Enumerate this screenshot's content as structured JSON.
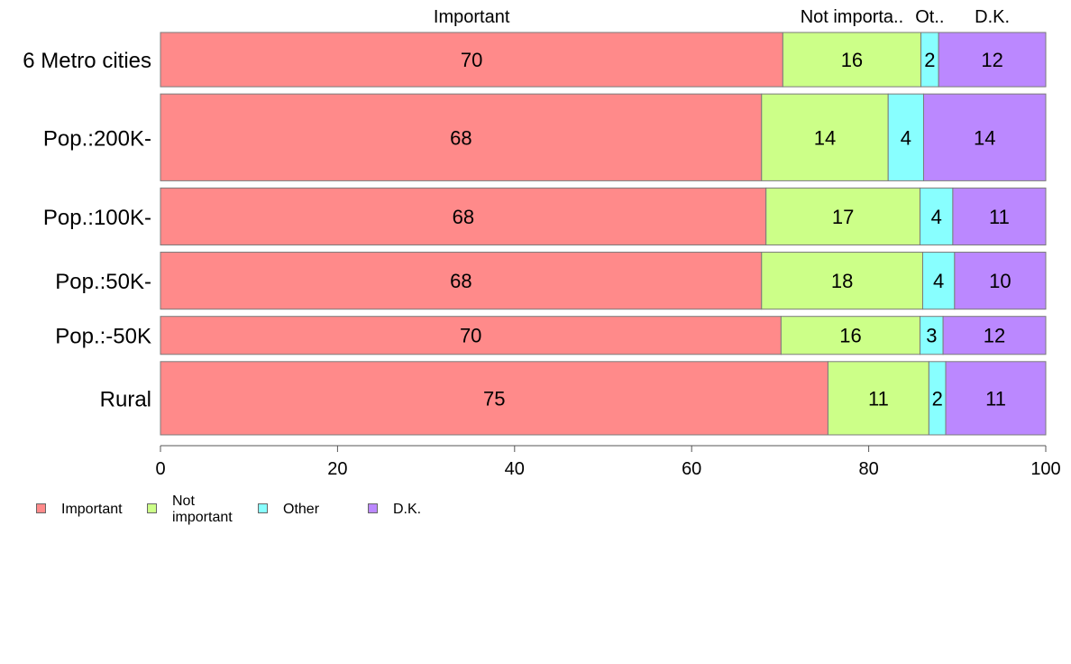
{
  "chart_data": {
    "type": "bar",
    "orientation": "horizontal",
    "stacked": true,
    "categories": [
      "6 Metro cities",
      "Pop.:200K-",
      "Pop.:100K-",
      "Pop.:50K-",
      "Pop.:-50K",
      "Rural"
    ],
    "series": [
      {
        "name": "Important",
        "color": "#FF8A8A",
        "values": [
          70.3,
          67.9,
          68.4,
          67.9,
          70.1,
          75.4
        ]
      },
      {
        "name": "Not important",
        "color": "#CCFF88",
        "values": [
          15.6,
          14.3,
          17.4,
          18.2,
          15.7,
          11.4
        ]
      },
      {
        "name": "Other",
        "color": "#88FFFF",
        "values": [
          2.0,
          4.0,
          3.7,
          3.6,
          2.6,
          1.9
        ]
      },
      {
        "name": "D.K.",
        "color": "#BB88FF",
        "values": [
          12.1,
          13.8,
          10.5,
          10.3,
          11.6,
          11.3
        ]
      }
    ],
    "data_labels": [
      [
        "70",
        "16",
        "2",
        "12"
      ],
      [
        "68",
        "14",
        "4",
        "14"
      ],
      [
        "68",
        "17",
        "4",
        "11"
      ],
      [
        "68",
        "18",
        "4",
        "10"
      ],
      [
        "70",
        "16",
        "3",
        "12"
      ],
      [
        "75",
        "11",
        "2",
        "11"
      ]
    ],
    "bar_weights": [
      1.0,
      1.6,
      1.05,
      1.05,
      0.7,
      1.35
    ],
    "top_labels": [
      "Important",
      "Not importa..",
      "Ot..",
      "D.K."
    ],
    "xlim": [
      0,
      100
    ],
    "xticks": [
      0,
      20,
      40,
      60,
      80,
      100
    ],
    "xlabel": "",
    "ylabel": "",
    "title": "",
    "grid": false,
    "legend_position": "bottom-left"
  },
  "legend": {
    "items": [
      {
        "label_lines": [
          "Important"
        ],
        "color": "#FF8A8A"
      },
      {
        "label_lines": [
          "Not",
          "important"
        ],
        "color": "#CCFF88"
      },
      {
        "label_lines": [
          "Other"
        ],
        "color": "#88FFFF"
      },
      {
        "label_lines": [
          "D.K."
        ],
        "color": "#BB88FF"
      }
    ]
  }
}
